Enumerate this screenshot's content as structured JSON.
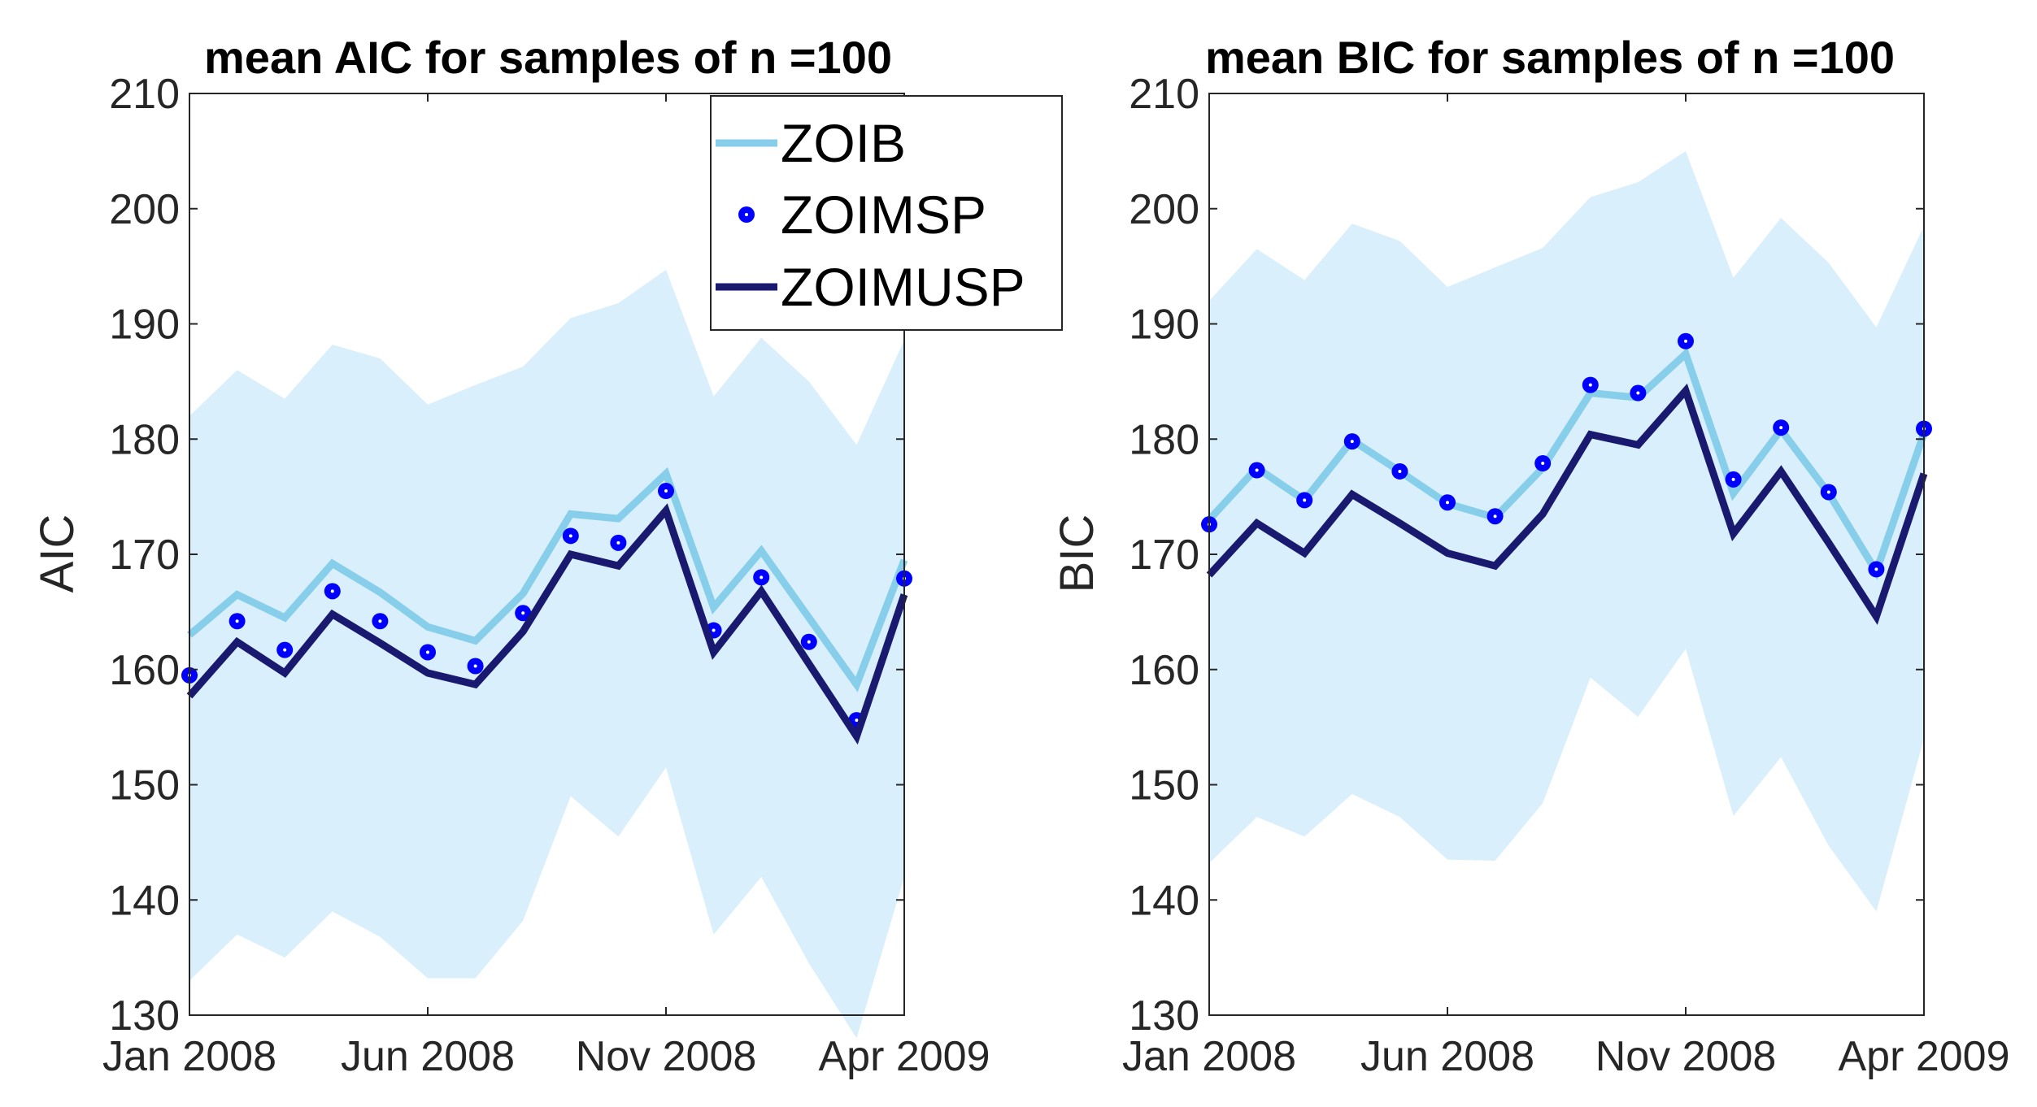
{
  "chart_data": [
    {
      "type": "line",
      "title": "mean AIC for samples of n =100",
      "xlabel": "",
      "ylabel": "AIC",
      "ylim": [
        130,
        210
      ],
      "yticks": [
        130,
        140,
        150,
        160,
        170,
        180,
        190,
        200,
        210
      ],
      "x": [
        1,
        2,
        3,
        4,
        5,
        6,
        7,
        8,
        9,
        10,
        11,
        12,
        13,
        14,
        15,
        16
      ],
      "xlim": [
        1,
        16
      ],
      "xticks": [
        {
          "x": 1,
          "label": "Jan 2008"
        },
        {
          "x": 6,
          "label": "Jun 2008"
        },
        {
          "x": 11,
          "label": "Nov 2008"
        },
        {
          "x": 16,
          "label": "Apr 2009"
        }
      ],
      "band": {
        "upper": [
          182,
          186,
          183.5,
          188.2,
          187,
          183,
          184.7,
          186.3,
          190.5,
          191.8,
          194.7,
          183.7,
          188.8,
          185,
          179.5,
          188.6
        ],
        "lower": [
          133,
          137,
          135,
          139,
          136.8,
          133.2,
          133.2,
          138.2,
          149,
          145.5,
          151.5,
          137,
          142,
          134.5,
          128,
          142
        ]
      },
      "series": [
        {
          "name": "ZOIB",
          "style": "line-light",
          "values": [
            163,
            166.5,
            164.5,
            169.2,
            166.7,
            163.7,
            162.5,
            166.6,
            173.5,
            173.1,
            177,
            165.4,
            170.3,
            164.5,
            158.7,
            169.5
          ]
        },
        {
          "name": "ZOIMSP",
          "style": "dots",
          "values": [
            159.5,
            164.2,
            161.7,
            166.8,
            164.2,
            161.5,
            160.3,
            164.9,
            171.6,
            171,
            175.5,
            163.4,
            168,
            162.4,
            155.6,
            167.9
          ]
        },
        {
          "name": "ZOIMUSP",
          "style": "line-dark",
          "values": [
            157.7,
            162.4,
            159.7,
            164.8,
            162.3,
            159.7,
            158.7,
            163.3,
            170,
            169,
            173.8,
            161.5,
            166.8,
            160.5,
            154.2,
            166.5
          ]
        }
      ]
    },
    {
      "type": "line",
      "title": "mean BIC for samples of n =100",
      "xlabel": "",
      "ylabel": "BIC",
      "ylim": [
        130,
        210
      ],
      "yticks": [
        130,
        140,
        150,
        160,
        170,
        180,
        190,
        200,
        210
      ],
      "x": [
        1,
        2,
        3,
        4,
        5,
        6,
        7,
        8,
        9,
        10,
        11,
        12,
        13,
        14,
        15,
        16
      ],
      "xlim": [
        1,
        16
      ],
      "xticks": [
        {
          "x": 1,
          "label": "Jan 2008"
        },
        {
          "x": 6,
          "label": "Jun 2008"
        },
        {
          "x": 11,
          "label": "Nov 2008"
        },
        {
          "x": 16,
          "label": "Apr 2009"
        }
      ],
      "band": {
        "upper": [
          192,
          196.5,
          193.8,
          198.7,
          197.2,
          193.2,
          194.9,
          196.6,
          201,
          202.3,
          205,
          194,
          199.2,
          195.3,
          189.7,
          198.5
        ],
        "lower": [
          143.2,
          147.2,
          145.5,
          149.2,
          147.2,
          143.5,
          143.4,
          148.4,
          159.3,
          155.9,
          161.8,
          147.3,
          152.4,
          144.7,
          139,
          154
        ]
      },
      "series": [
        {
          "name": "ZOIB",
          "style": "line-light",
          "values": [
            173,
            177.5,
            174.7,
            179.9,
            177.2,
            174.4,
            173.2,
            177.5,
            184,
            183.6,
            187.4,
            175.3,
            180.8,
            175.3,
            168.5,
            180.5
          ]
        },
        {
          "name": "ZOIMSP",
          "style": "dots",
          "values": [
            172.6,
            177.3,
            174.7,
            179.8,
            177.2,
            174.5,
            173.3,
            177.9,
            184.7,
            184,
            188.5,
            176.5,
            181,
            175.4,
            168.7,
            180.9
          ]
        },
        {
          "name": "ZOIMUSP",
          "style": "line-dark",
          "values": [
            168.2,
            172.7,
            170.1,
            175.2,
            172.7,
            170.1,
            169,
            173.5,
            180.4,
            179.5,
            184.2,
            171.8,
            177.2,
            171,
            164.6,
            177
          ]
        }
      ]
    }
  ],
  "legend": {
    "entries": [
      "ZOIB",
      "ZOIMSP",
      "ZOIMUSP"
    ],
    "placement": "top-right of left panel"
  },
  "colors": {
    "band": "#d9effb",
    "zoib": "#87ceeb",
    "zoimsp": "#0000ff",
    "zoimusp": "#191970",
    "axis": "#262626"
  }
}
